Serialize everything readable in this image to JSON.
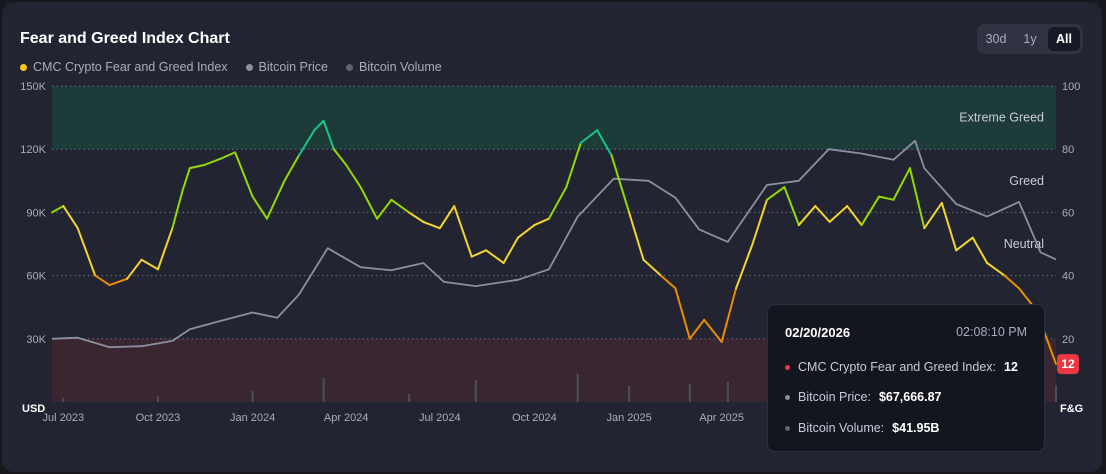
{
  "header": {
    "title": "Fear and Greed Index Chart"
  },
  "legend": [
    {
      "label": "CMC Crypto Fear and Greed Index",
      "color": "#f5c518"
    },
    {
      "label": "Bitcoin Price",
      "color": "#8b90a0"
    },
    {
      "label": "Bitcoin Volume",
      "color": "#5f6475"
    }
  ],
  "range_buttons": [
    "30d",
    "1y",
    "All"
  ],
  "active_range": "All",
  "tooltip": {
    "date": "02/20/2026",
    "time": "02:08:10 PM",
    "fg_label": "CMC Crypto Fear and Greed Index:",
    "fg_value": "12",
    "price_label": "Bitcoin Price:",
    "price_value": "$67,666.87",
    "volume_label": "Bitcoin Volume:",
    "volume_value": "$41.95B"
  },
  "current_badge": "12",
  "chart_data": {
    "type": "line",
    "x_ticks": [
      "Jul 2023",
      "Oct 2023",
      "Jan 2024",
      "Apr 2024",
      "Jul 2024",
      "Oct 2024",
      "Jan 2025",
      "Apr 2025"
    ],
    "left_axis": {
      "unit": "USD",
      "ticks": [
        "150K",
        "120K",
        "90K",
        "60K",
        "30K"
      ],
      "ylim": [
        0,
        150000
      ]
    },
    "right_axis": {
      "unit": "F&G",
      "ticks": [
        "100",
        "80",
        "60",
        "40",
        "20"
      ],
      "ylim": [
        0,
        100
      ]
    },
    "zone_labels": [
      "Extreme Greed",
      "Greed",
      "Neutral"
    ],
    "zone_colors": {
      "extreme_greed": "#1d3b38",
      "extreme_fear": "#3a2630"
    },
    "series": [
      {
        "name": "CMC Crypto Fear and Greed Index",
        "x": [
          "2023-06-20",
          "2023-07-01",
          "2023-07-15",
          "2023-08-01",
          "2023-08-15",
          "2023-09-01",
          "2023-09-15",
          "2023-10-01",
          "2023-10-15",
          "2023-10-25",
          "2023-11-01",
          "2023-11-15",
          "2023-12-01",
          "2023-12-15",
          "2024-01-01",
          "2024-01-15",
          "2024-02-01",
          "2024-02-15",
          "2024-03-01",
          "2024-03-10",
          "2024-03-20",
          "2024-04-01",
          "2024-04-15",
          "2024-05-01",
          "2024-05-15",
          "2024-06-01",
          "2024-06-15",
          "2024-07-01",
          "2024-07-15",
          "2024-08-01",
          "2024-08-15",
          "2024-09-01",
          "2024-09-15",
          "2024-10-01",
          "2024-10-15",
          "2024-11-01",
          "2024-11-15",
          "2024-12-01",
          "2024-12-15",
          "2025-01-01",
          "2025-01-15",
          "2025-02-01",
          "2025-02-15",
          "2025-03-01",
          "2025-03-15",
          "2025-04-01",
          "2025-04-15",
          "2025-05-01",
          "2025-05-15",
          "2025-06-01",
          "2025-06-15",
          "2025-07-01",
          "2025-07-15",
          "2025-08-01",
          "2025-08-15",
          "2025-09-01",
          "2025-09-15",
          "2025-10-01",
          "2025-10-15",
          "2025-11-01",
          "2025-11-15",
          "2025-12-01",
          "2025-12-15",
          "2026-01-01",
          "2026-01-15",
          "2026-02-01",
          "2026-02-20"
        ],
        "values": [
          60,
          62,
          55,
          40,
          37,
          39,
          45,
          42,
          55,
          67,
          74,
          75,
          77,
          79,
          65,
          58,
          70,
          78,
          86,
          89,
          80,
          75,
          68,
          58,
          64,
          60,
          57,
          55,
          62,
          46,
          48,
          44,
          52,
          56,
          58,
          68,
          82,
          86,
          78,
          60,
          45,
          40,
          36,
          20,
          26,
          19,
          36,
          50,
          64,
          68,
          56,
          62,
          57,
          62,
          56,
          65,
          64,
          74,
          55,
          63,
          48,
          52,
          44,
          40,
          36,
          29,
          12
        ]
      },
      {
        "name": "Bitcoin Price",
        "x": [
          "2023-06-20",
          "2023-07-15",
          "2023-08-15",
          "2023-09-15",
          "2023-10-15",
          "2023-11-01",
          "2023-12-01",
          "2024-01-01",
          "2024-01-25",
          "2024-02-15",
          "2024-03-14",
          "2024-04-15",
          "2024-05-15",
          "2024-06-15",
          "2024-07-05",
          "2024-08-05",
          "2024-09-15",
          "2024-10-15",
          "2024-11-12",
          "2024-12-17",
          "2025-01-20",
          "2025-02-15",
          "2025-03-10",
          "2025-04-07",
          "2025-05-15",
          "2025-06-15",
          "2025-07-14",
          "2025-08-14",
          "2025-09-15",
          "2025-10-06",
          "2025-10-15",
          "2025-11-15",
          "2025-12-15",
          "2026-01-15",
          "2026-02-05",
          "2026-02-20"
        ],
        "values": [
          30000,
          30500,
          26000,
          26500,
          29000,
          34500,
          38500,
          42500,
          40000,
          51000,
          73000,
          64000,
          62500,
          66000,
          57000,
          55000,
          58000,
          63000,
          88000,
          106000,
          105000,
          97000,
          82000,
          76000,
          103000,
          105000,
          120000,
          118000,
          115000,
          124000,
          111000,
          94000,
          88000,
          95000,
          71000,
          67666.87
        ]
      },
      {
        "name": "Bitcoin Volume",
        "x": [
          "2023-07-01",
          "2023-10-01",
          "2024-01-01",
          "2024-03-10",
          "2024-06-01",
          "2024-08-05",
          "2024-11-12",
          "2025-01-01",
          "2025-03-01",
          "2025-04-07",
          "2025-06-01",
          "2025-08-01",
          "2025-10-10",
          "2025-12-01",
          "2026-02-05",
          "2026-02-20"
        ],
        "values": [
          10000000000,
          14000000000,
          28000000000,
          60000000000,
          20000000000,
          55000000000,
          70000000000,
          40000000000,
          45000000000,
          50000000000,
          30000000000,
          45000000000,
          55000000000,
          50000000000,
          70000000000,
          41950000000
        ]
      }
    ]
  }
}
